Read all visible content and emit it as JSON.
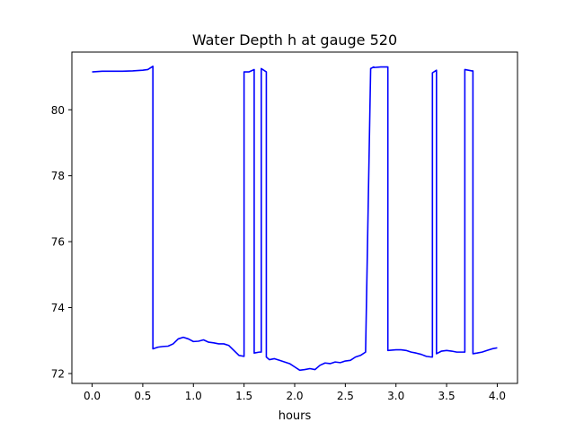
{
  "chart_data": {
    "type": "line",
    "title": "Water Depth h at gauge 520",
    "xlabel": "hours",
    "ylabel": "",
    "xlim": [
      -0.2,
      4.2
    ],
    "ylim": [
      71.7,
      81.75
    ],
    "xticks": [
      0.0,
      0.5,
      1.0,
      1.5,
      2.0,
      2.5,
      3.0,
      3.5,
      4.0
    ],
    "xtick_labels": [
      "0.0",
      "0.5",
      "1.0",
      "1.5",
      "2.0",
      "2.5",
      "3.0",
      "3.5",
      "4.0"
    ],
    "yticks": [
      72,
      74,
      76,
      78,
      80
    ],
    "ytick_labels": [
      "72",
      "74",
      "76",
      "78",
      "80"
    ],
    "grid": false,
    "series": [
      {
        "color": "#0000ff",
        "x": [
          0.0,
          0.1,
          0.2,
          0.3,
          0.4,
          0.5,
          0.55,
          0.6,
          0.6,
          0.65,
          0.7,
          0.75,
          0.8,
          0.85,
          0.9,
          0.95,
          1.0,
          1.05,
          1.1,
          1.15,
          1.2,
          1.25,
          1.3,
          1.35,
          1.4,
          1.45,
          1.5,
          1.5,
          1.55,
          1.6,
          1.6,
          1.65,
          1.67,
          1.67,
          1.72,
          1.72,
          1.75,
          1.75,
          1.8,
          1.85,
          1.9,
          1.95,
          2.0,
          2.05,
          2.1,
          2.15,
          2.2,
          2.25,
          2.3,
          2.35,
          2.4,
          2.45,
          2.5,
          2.55,
          2.6,
          2.65,
          2.7,
          2.75,
          2.78,
          2.78,
          2.85,
          2.92,
          2.92,
          3.0,
          3.05,
          3.1,
          3.15,
          3.2,
          3.25,
          3.3,
          3.35,
          3.36,
          3.36,
          3.4,
          3.4,
          3.45,
          3.5,
          3.55,
          3.6,
          3.68,
          3.68,
          3.75,
          3.76,
          3.76,
          3.8,
          3.85,
          3.9,
          3.95,
          4.0
        ],
        "y": [
          81.15,
          81.17,
          81.17,
          81.17,
          81.18,
          81.2,
          81.22,
          81.32,
          72.75,
          72.8,
          72.82,
          72.83,
          72.9,
          73.05,
          73.1,
          73.05,
          72.97,
          72.98,
          73.02,
          72.95,
          72.93,
          72.9,
          72.9,
          72.85,
          72.7,
          72.55,
          72.52,
          81.15,
          81.15,
          81.22,
          72.62,
          72.65,
          72.65,
          81.25,
          81.15,
          72.5,
          72.42,
          72.42,
          72.45,
          72.4,
          72.35,
          72.3,
          72.2,
          72.1,
          72.12,
          72.15,
          72.12,
          72.25,
          72.32,
          72.3,
          72.35,
          72.33,
          72.38,
          72.4,
          72.5,
          72.55,
          72.65,
          81.25,
          81.3,
          81.28,
          81.3,
          81.3,
          72.7,
          72.72,
          72.72,
          72.7,
          72.65,
          72.62,
          72.58,
          72.52,
          72.5,
          72.5,
          81.12,
          81.2,
          72.6,
          72.68,
          72.7,
          72.68,
          72.65,
          72.65,
          81.22,
          81.18,
          81.18,
          72.6,
          72.62,
          72.65,
          72.7,
          72.75,
          72.78
        ]
      }
    ]
  }
}
